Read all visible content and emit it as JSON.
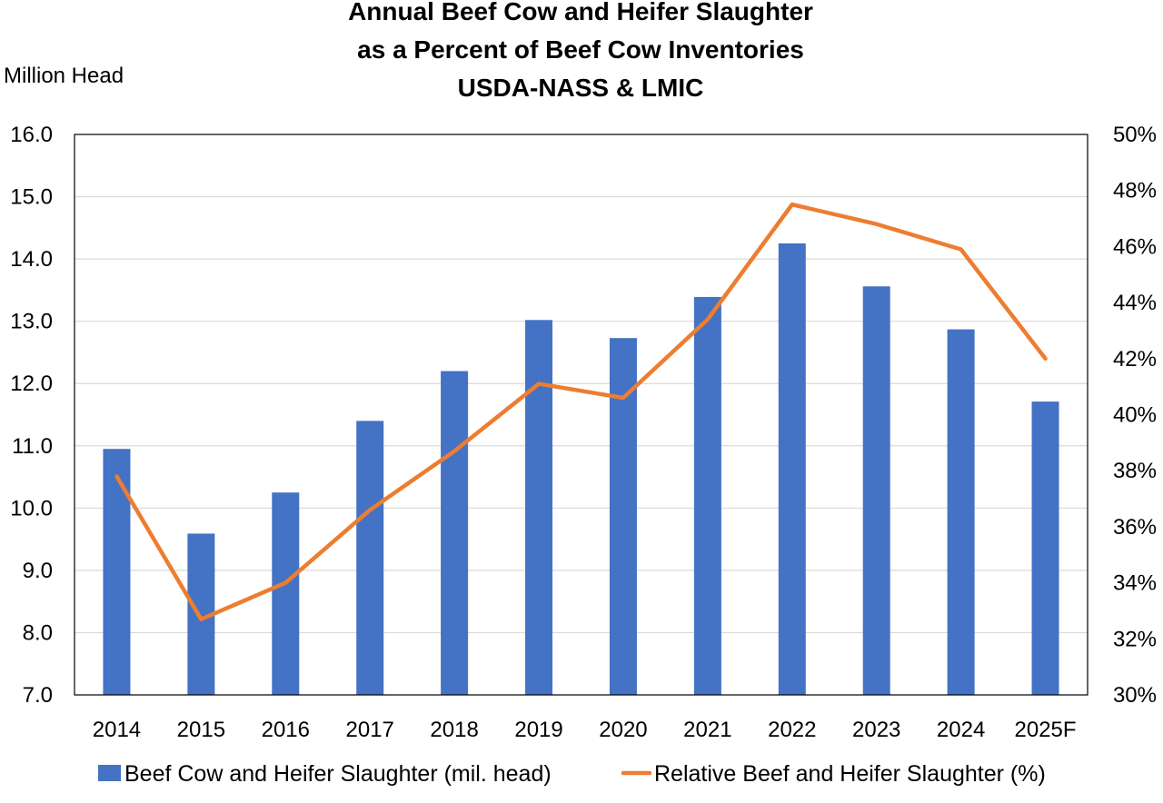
{
  "chart_data": {
    "type": "bar",
    "title_lines": [
      "Annual Beef Cow and Heifer Slaughter",
      "as a Percent of Beef Cow Inventories",
      "USDA-NASS  & LMIC"
    ],
    "ylabel": "Million Head",
    "categories": [
      "2014",
      "2015",
      "2016",
      "2017",
      "2018",
      "2019",
      "2020",
      "2021",
      "2022",
      "2023",
      "2024",
      "2025F"
    ],
    "y_left": {
      "ylim": [
        7.0,
        16.0
      ],
      "ticks": [
        "7.0",
        "8.0",
        "9.0",
        "10.0",
        "11.0",
        "12.0",
        "13.0",
        "14.0",
        "15.0",
        "16.0"
      ]
    },
    "y_right": {
      "ylim": [
        30,
        50
      ],
      "ticks": [
        "30%",
        "32%",
        "34%",
        "36%",
        "38%",
        "40%",
        "42%",
        "44%",
        "46%",
        "48%",
        "50%"
      ]
    },
    "grid": true,
    "legend_position": "bottom",
    "series": [
      {
        "name": "Beef Cow and Heifer Slaughter (mil. head)",
        "type": "bar",
        "axis": "left",
        "color": "#4472C4",
        "values": [
          10.95,
          9.59,
          10.25,
          11.4,
          12.2,
          13.02,
          12.73,
          13.39,
          14.25,
          13.56,
          12.87,
          11.71
        ]
      },
      {
        "name": "Relative Beef and Heifer Slaughter (%)",
        "type": "line",
        "axis": "right",
        "color": "#ED7D31",
        "values": [
          37.8,
          32.7,
          34.0,
          36.6,
          38.7,
          41.1,
          40.6,
          43.4,
          47.5,
          46.8,
          45.9,
          42.0
        ]
      }
    ]
  }
}
